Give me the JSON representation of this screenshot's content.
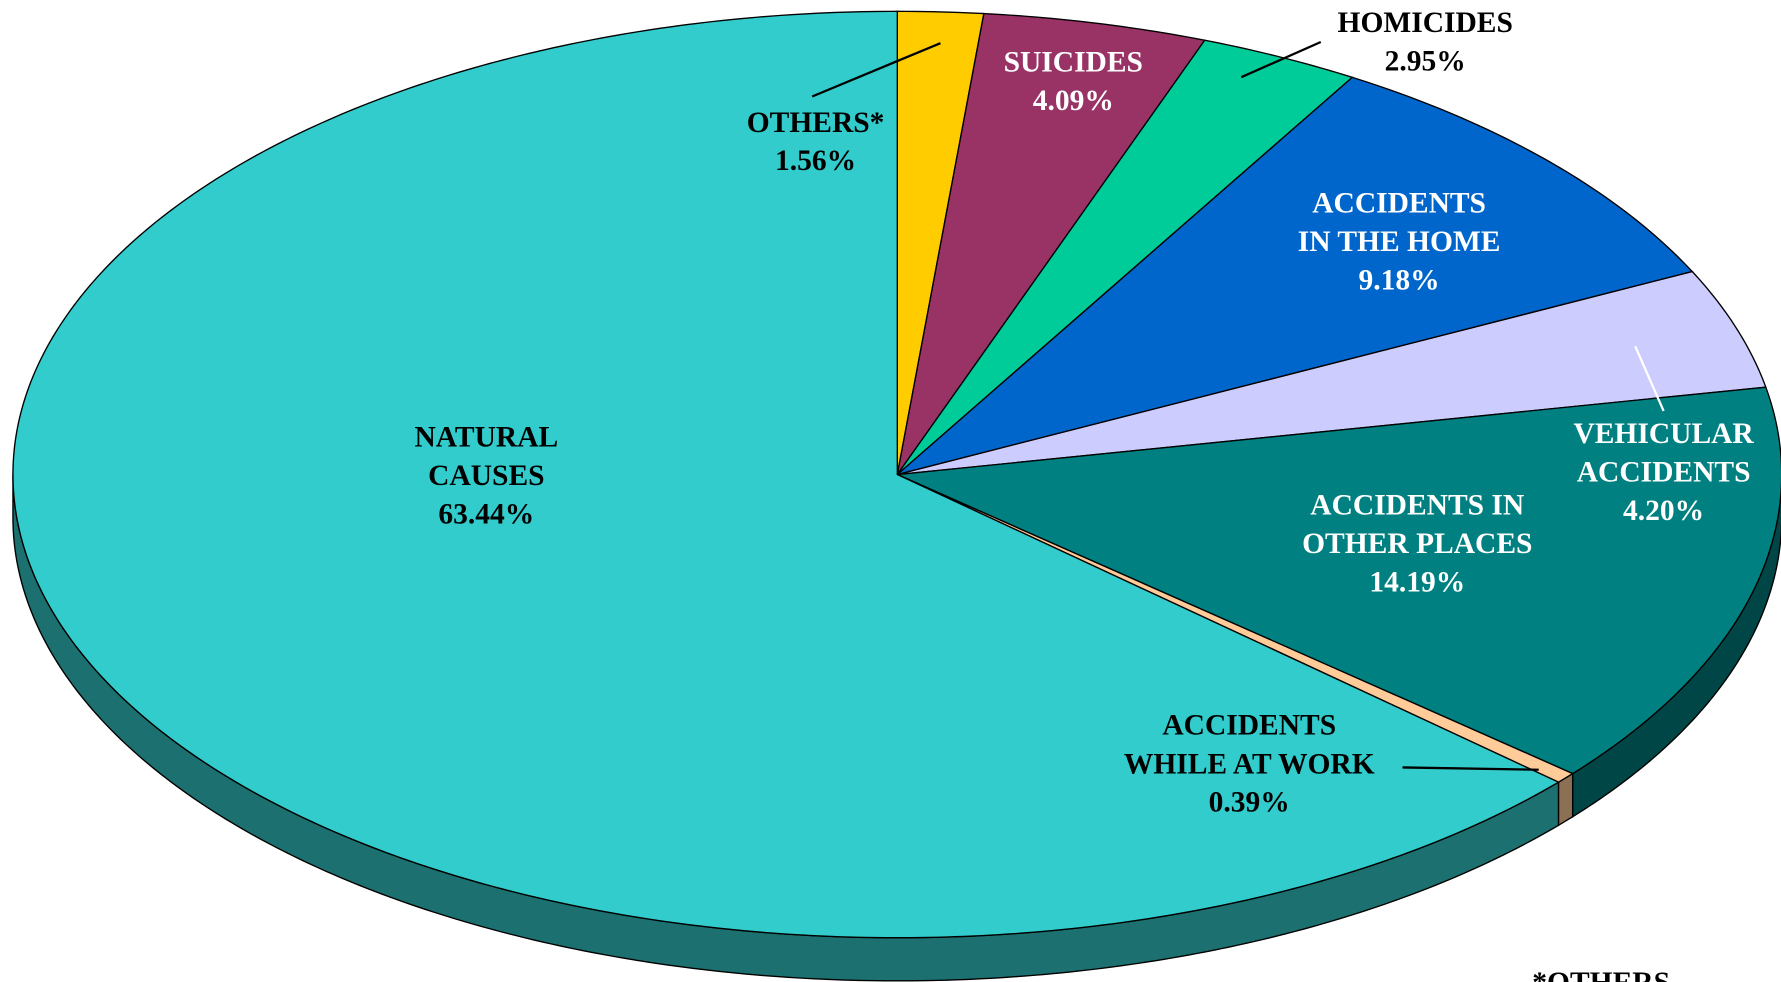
{
  "chart_data": {
    "type": "pie",
    "categories": [
      "OTHERS*",
      "SUICIDES",
      "HOMICIDES",
      "ACCIDENTS\nIN THE HOME",
      "VEHICULAR\nACCIDENTS",
      "ACCIDENTS IN\nOTHER PLACES",
      "ACCIDENTS\nWHILE AT WORK",
      "NATURAL\nCAUSES"
    ],
    "values": [
      1.56,
      4.09,
      2.95,
      9.18,
      4.2,
      14.19,
      0.39,
      63.44
    ],
    "value_labels": [
      "1.56%",
      "4.09%",
      "2.95%",
      "9.18%",
      "4.20%",
      "14.19%",
      "0.39%",
      "63.44%"
    ],
    "colors": [
      "#ffcc00",
      "#993366",
      "#00cc99",
      "#0066cc",
      "#ccccff",
      "#008080",
      "#ffcc99",
      "#33cccc"
    ],
    "label_colors": [
      "#000000",
      "#ffffff",
      "#000000",
      "#ffffff",
      "#ffffff",
      "#ffffff",
      "#000000",
      "#000000"
    ],
    "footnote": "*OTHERS"
  }
}
